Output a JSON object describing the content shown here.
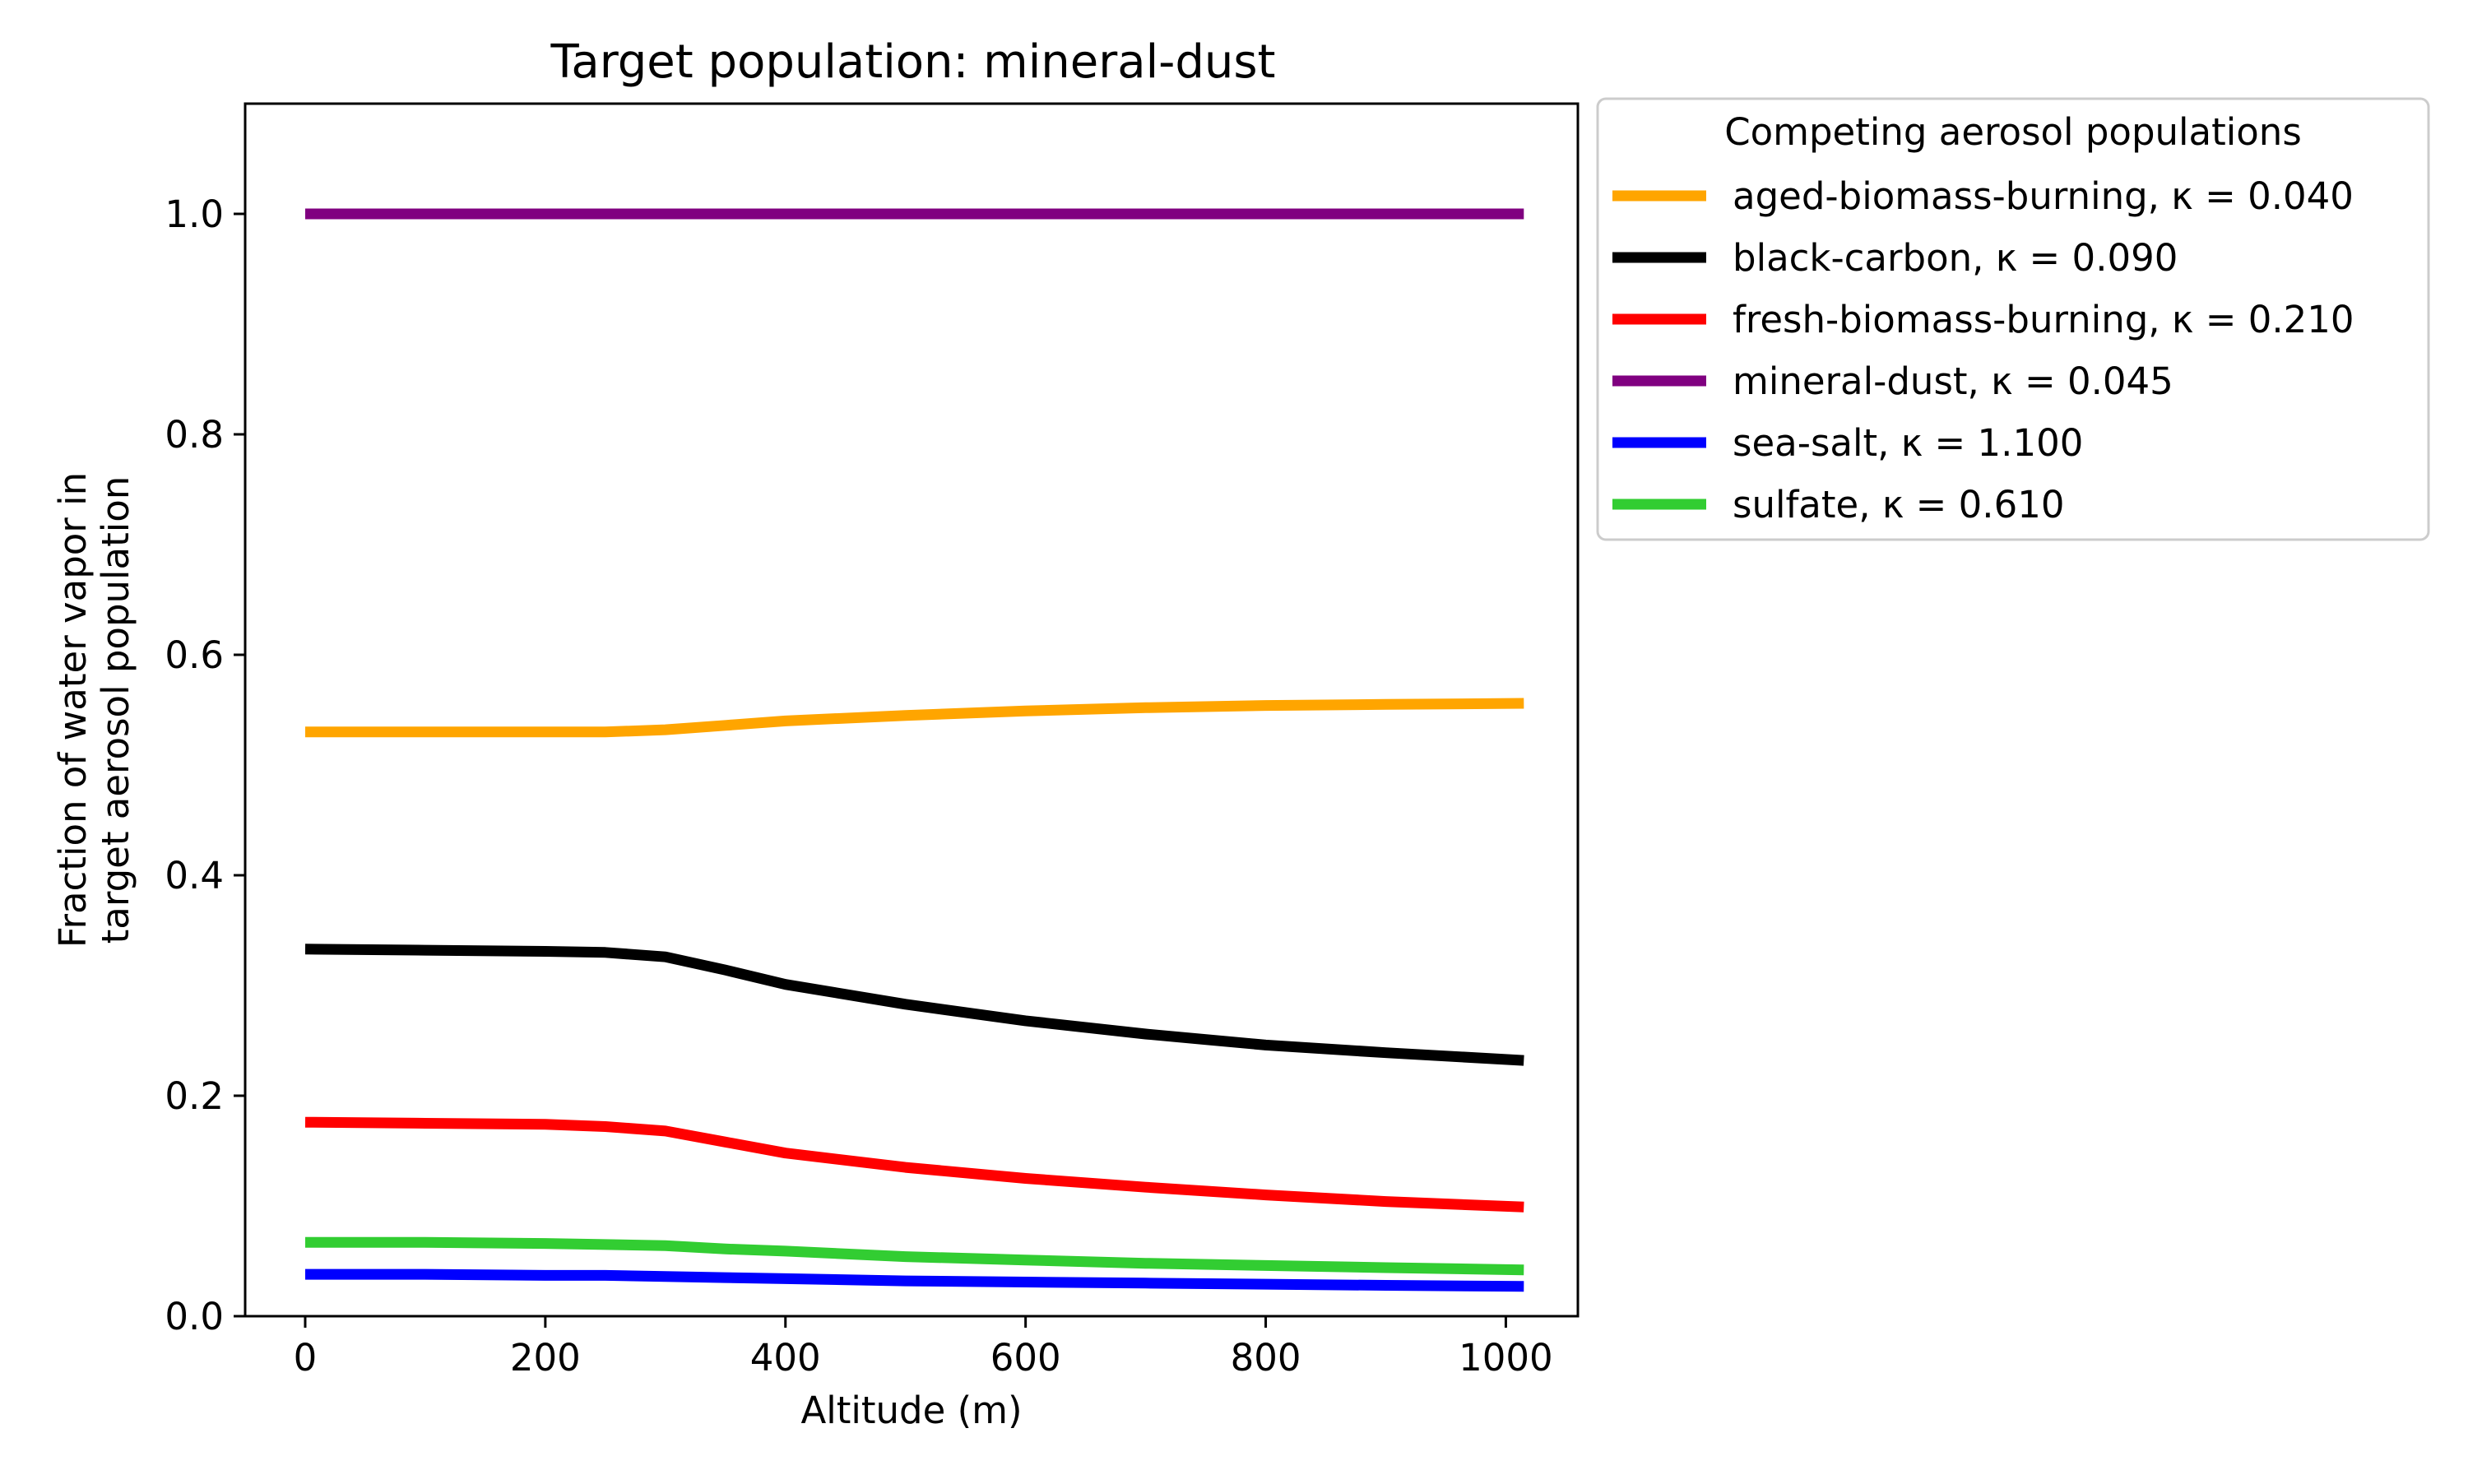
{
  "chart_data": {
    "type": "line",
    "title": "Target population: mineral-dust",
    "xlabel": "Altitude (m)",
    "ylabel_lines": [
      "Fraction of water vapor in",
      "target aerosol population"
    ],
    "xlim": [
      -50,
      1060
    ],
    "ylim": [
      0,
      1.1
    ],
    "xticks": [
      0,
      200,
      400,
      600,
      800,
      1000
    ],
    "xtick_labels": [
      "0",
      "200",
      "400",
      "600",
      "800",
      "1000"
    ],
    "yticks": [
      0,
      0.2,
      0.4,
      0.6,
      0.8,
      1.0
    ],
    "ytick_labels": [
      "0.0",
      "0.2",
      "0.4",
      "0.6",
      "0.8",
      "1.0"
    ],
    "grid": false,
    "legend": {
      "title": "Competing aerosol populations",
      "placement": "outside-upper-right"
    },
    "x": [
      0,
      100,
      200,
      250,
      300,
      350,
      400,
      500,
      600,
      700,
      800,
      900,
      1015
    ],
    "series": [
      {
        "name": "aged-biomass-burning",
        "kappa_label": "κ = 0.040",
        "color": "#FFA500",
        "values": [
          0.53,
          0.53,
          0.53,
          0.53,
          0.532,
          0.536,
          0.54,
          0.545,
          0.549,
          0.552,
          0.554,
          0.555,
          0.556
        ]
      },
      {
        "name": "black-carbon",
        "kappa_label": "κ = 0.090",
        "color": "#000000",
        "values": [
          0.333,
          0.332,
          0.331,
          0.33,
          0.326,
          0.314,
          0.301,
          0.283,
          0.268,
          0.256,
          0.246,
          0.239,
          0.232
        ]
      },
      {
        "name": "fresh-biomass-burning",
        "kappa_label": "κ = 0.210",
        "color": "#FF0000",
        "values": [
          0.176,
          0.175,
          0.174,
          0.172,
          0.168,
          0.158,
          0.148,
          0.135,
          0.125,
          0.117,
          0.11,
          0.104,
          0.099
        ]
      },
      {
        "name": "mineral-dust",
        "kappa_label": "κ = 0.045",
        "color": "#800080",
        "values": [
          1.0,
          1.0,
          1.0,
          1.0,
          1.0,
          1.0,
          1.0,
          1.0,
          1.0,
          1.0,
          1.0,
          1.0,
          1.0
        ]
      },
      {
        "name": "sea-salt",
        "kappa_label": "κ = 1.100",
        "color": "#0000FF",
        "values": [
          0.038,
          0.038,
          0.037,
          0.037,
          0.036,
          0.035,
          0.034,
          0.032,
          0.031,
          0.03,
          0.029,
          0.028,
          0.027
        ]
      },
      {
        "name": "sulfate",
        "kappa_label": "κ = 0.610",
        "color": "#32CD32",
        "values": [
          0.067,
          0.067,
          0.066,
          0.065,
          0.064,
          0.061,
          0.059,
          0.054,
          0.051,
          0.048,
          0.046,
          0.044,
          0.042
        ]
      }
    ]
  }
}
